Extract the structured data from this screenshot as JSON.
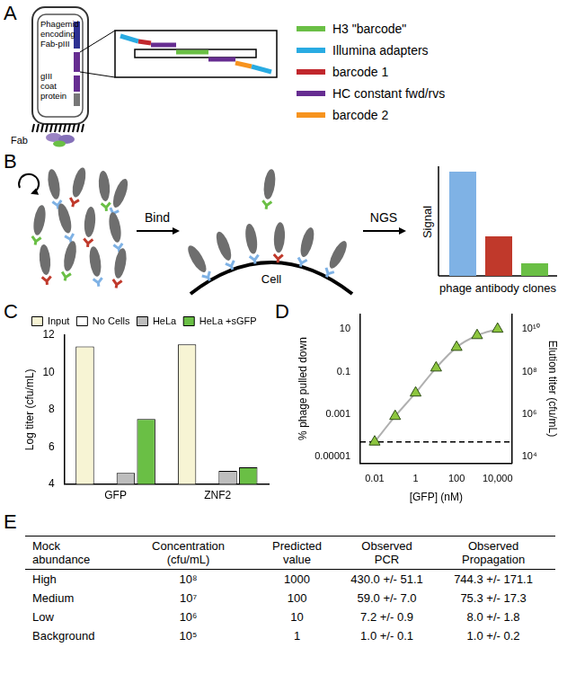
{
  "panel_a": {
    "label": "A",
    "phagemid_label": [
      "Phagemid",
      "encoding",
      "Fab-pIII"
    ],
    "coat_label": [
      "gIII",
      "coat",
      "protein"
    ],
    "fab_label": "Fab",
    "legend": [
      {
        "name": "H3 \"barcode\"",
        "color": "#6abf45"
      },
      {
        "name": "Illumina adapters",
        "color": "#29abe2"
      },
      {
        "name": "barcode 1",
        "color": "#c1272d"
      },
      {
        "name": "HC constant fwd/rvs",
        "color": "#662d91"
      },
      {
        "name": "barcode 2",
        "color": "#f7931e"
      }
    ]
  },
  "panel_b": {
    "label": "B",
    "steps": [
      "Bind",
      "NGS"
    ],
    "cell_label": "Cell",
    "y_label": "Signal",
    "x_label": "phage antibody clones"
  },
  "chart_data": [
    {
      "panel": "C",
      "type": "bar",
      "categories": [
        "GFP",
        "ZNF2"
      ],
      "series": [
        {
          "name": "Input",
          "color": "#f7f4d4",
          "values": [
            11.4,
            11.5
          ]
        },
        {
          "name": "No Cells",
          "color": "#ffffff",
          "values": [
            4,
            4
          ]
        },
        {
          "name": "HeLa",
          "color": "#bdbdbd",
          "values": [
            4.6,
            4.7
          ]
        },
        {
          "name": "HeLa +sGFP",
          "color": "#6abf45",
          "values": [
            7.5,
            4.9
          ]
        }
      ],
      "y_label": "Log titer (cfu/mL)",
      "ylim": [
        4,
        12
      ],
      "yticks": [
        4,
        6,
        8,
        10,
        12
      ],
      "legend": "top",
      "grid": false
    },
    {
      "panel": "D",
      "type": "line",
      "log": true,
      "x_label": "[GFP] (nM)",
      "y_label": "% phage pulled down",
      "y2_label": "Elution titer (cfu/mL)",
      "x": [
        0.01,
        0.1,
        1,
        10,
        100,
        1000,
        10000
      ],
      "series": [
        {
          "color": "#8dc63f",
          "marker": "triangle",
          "line_style": "solid",
          "values": [
            5e-05,
            0.0008,
            0.01,
            0.15,
            1.4,
            5,
            10
          ]
        }
      ],
      "threshold": {
        "value": 5e-05,
        "line_style": "dashed"
      },
      "xlim": [
        0.002,
        50000
      ],
      "xticks": [
        0.01,
        1,
        100,
        {
          "value": 10000,
          "label": "10,000"
        }
      ],
      "ylim": [
        5e-06,
        50
      ],
      "yticks": [
        1e-05,
        0.001,
        0.1,
        10
      ],
      "y2lim": [
        5000,
        50000000000
      ],
      "y2ticks": [
        {
          "value": 10000,
          "label": "10⁴"
        },
        {
          "value": 1000000,
          "label": "10⁶"
        },
        {
          "value": 100000000,
          "label": "10⁸"
        },
        {
          "value": 10000000000,
          "label": "10¹⁰"
        }
      ],
      "grid": false
    }
  ],
  "panel_e": {
    "label": "E",
    "table": {
      "header": [
        "Mock abundance",
        "Concentration (cfu/mL)",
        "Predicted value",
        "Observed PCR",
        "Observed Propagation"
      ],
      "rows": [
        [
          "High",
          "10⁸",
          "1000",
          "430.0 +/- 51.1",
          "744.3 +/- 171.1"
        ],
        [
          "Medium",
          "10⁷",
          "100",
          "59.0 +/- 7.0",
          "75.3 +/- 17.3"
        ],
        [
          "Low",
          "10⁶",
          "10",
          "7.2 +/- 0.9",
          "8.0 +/- 1.8"
        ],
        [
          "Background",
          "10⁵",
          "1",
          "1.0 +/- 0.1",
          "1.0 +/- 0.2"
        ]
      ]
    }
  }
}
